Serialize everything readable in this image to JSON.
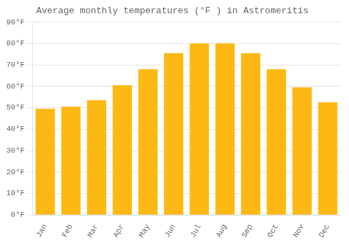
{
  "chart_data": {
    "type": "bar",
    "title": "Average monthly temperatures (°F ) in Astromeritis",
    "categories": [
      "Jan",
      "Feb",
      "Mar",
      "Apr",
      "May",
      "Jun",
      "Jul",
      "Aug",
      "Sep",
      "Oct",
      "Nov",
      "Dec"
    ],
    "values": [
      49.5,
      50.5,
      53.5,
      60.5,
      68.0,
      75.5,
      80.0,
      80.0,
      75.5,
      68.0,
      59.5,
      52.5
    ],
    "color": "#FDB813",
    "ylim": [
      0,
      90
    ],
    "yticks": [
      {
        "value": 0,
        "label": "0°F"
      },
      {
        "value": 10,
        "label": "10°F"
      },
      {
        "value": 20,
        "label": "20°F"
      },
      {
        "value": 30,
        "label": "30°F"
      },
      {
        "value": 40,
        "label": "40°F"
      },
      {
        "value": 50,
        "label": "50°F"
      },
      {
        "value": 60,
        "label": "60°F"
      },
      {
        "value": 70,
        "label": "70°F"
      },
      {
        "value": 80,
        "label": "80°F"
      },
      {
        "value": 90,
        "label": "90°F"
      }
    ],
    "grid": true
  }
}
